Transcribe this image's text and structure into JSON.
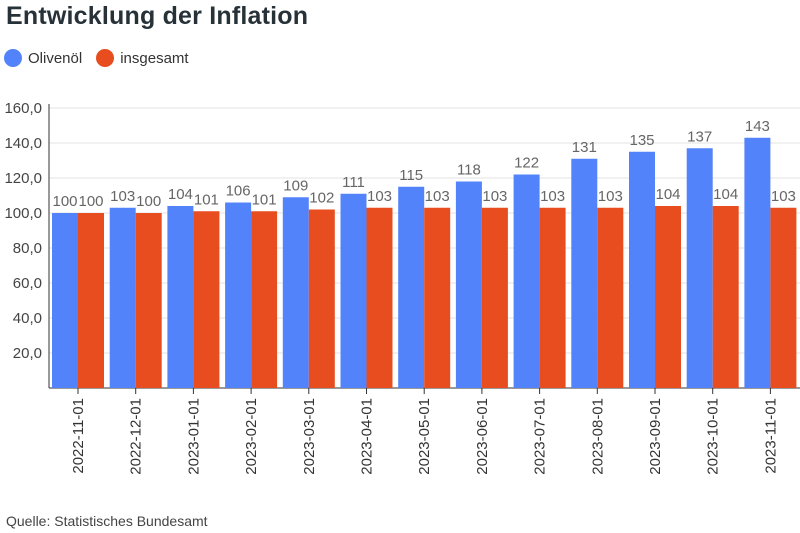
{
  "title": "Entwicklung der Inflation",
  "legend": [
    {
      "name": "Olivenöl",
      "color": "#5383fb"
    },
    {
      "name": "insgesamt",
      "color": "#e74d1f"
    }
  ],
  "source": "Quelle: Statistisches Bundesamt",
  "chart_data": {
    "type": "bar",
    "categories": [
      "2022-11-01",
      "2022-12-01",
      "2023-01-01",
      "2023-02-01",
      "2023-03-01",
      "2023-04-01",
      "2023-05-01",
      "2023-06-01",
      "2023-07-01",
      "2023-08-01",
      "2023-09-01",
      "2023-10-01",
      "2023-11-01"
    ],
    "series": [
      {
        "name": "Olivenöl",
        "color": "#5383fb",
        "values": [
          100,
          103,
          104,
          106,
          109,
          111,
          115,
          118,
          122,
          131,
          135,
          137,
          143
        ]
      },
      {
        "name": "insgesamt",
        "color": "#e74d1f",
        "values": [
          100,
          100,
          101,
          101,
          102,
          103,
          103,
          103,
          103,
          103,
          104,
          104,
          103
        ]
      }
    ],
    "yticks": [
      "20,0",
      "40,0",
      "60,0",
      "80,0",
      "100,0",
      "120,0",
      "140,0",
      "160,0"
    ],
    "ylim": [
      0,
      160
    ],
    "grid": true,
    "legend_position": "top-left"
  }
}
